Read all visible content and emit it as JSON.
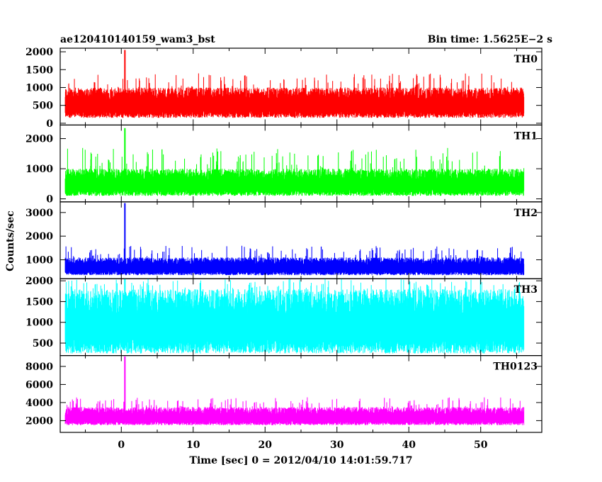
{
  "header": {
    "title": "ae120410140159_wam3_bst",
    "bin_time": "Bin time: 1.5625E−2 s"
  },
  "chart_data": {
    "type": "line",
    "xlabel": "Time [sec] 0 = 2012/04/10 14:01:59.717",
    "ylabel": "Counts/sec",
    "xlim": [
      -8.5,
      58.5
    ],
    "x_ticks": [
      0,
      10,
      20,
      30,
      40,
      50
    ],
    "x_data_range": [
      -7.8,
      56.0
    ],
    "burst_time": 0.5,
    "panels": [
      {
        "name": "TH0",
        "color": "#ff0000",
        "ylim": [
          -50,
          2100
        ],
        "y_ticks": [
          0,
          500,
          1000,
          1500,
          2000
        ],
        "baseline_low": 150,
        "typical_high": 1000,
        "max_noise": 1400,
        "burst_peak": 2050
      },
      {
        "name": "TH1",
        "color": "#00ff00",
        "ylim": [
          -100,
          2450
        ],
        "y_ticks": [
          0,
          1000,
          2000
        ],
        "baseline_low": 100,
        "typical_high": 1000,
        "max_noise": 1700,
        "burst_peak": 2350
      },
      {
        "name": "TH2",
        "color": "#0000ff",
        "ylim": [
          200,
          3450
        ],
        "y_ticks": [
          1000,
          2000,
          3000
        ],
        "baseline_low": 350,
        "typical_high": 1100,
        "max_noise": 1600,
        "burst_peak": 3400
      },
      {
        "name": "TH3",
        "color": "#00ffff",
        "ylim": [
          200,
          2050
        ],
        "y_ticks": [
          500,
          1000,
          1500,
          2000
        ],
        "baseline_low": 250,
        "typical_high": 1800,
        "max_noise": 2050,
        "burst_peak": 2050
      },
      {
        "name": "TH0123",
        "color": "#ff00ff",
        "ylim": [
          700,
          9200
        ],
        "y_ticks": [
          2000,
          4000,
          6000,
          8000
        ],
        "baseline_low": 1500,
        "typical_high": 3500,
        "max_noise": 4600,
        "burst_peak": 9100
      }
    ]
  }
}
